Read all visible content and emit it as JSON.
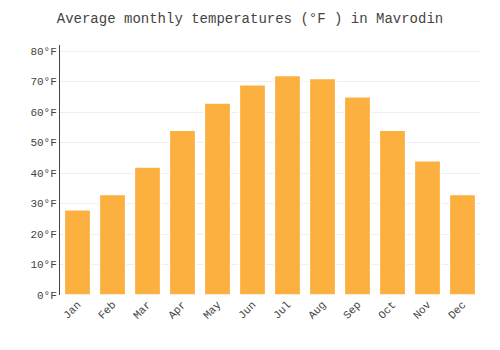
{
  "chart_data": {
    "type": "bar",
    "title": "Average monthly temperatures (°F ) in Mavrodin",
    "categories": [
      "Jan",
      "Feb",
      "Mar",
      "Apr",
      "May",
      "Jun",
      "Jul",
      "Aug",
      "Sep",
      "Oct",
      "Nov",
      "Dec"
    ],
    "values": [
      28,
      33,
      42,
      54,
      63,
      69,
      72,
      71,
      65,
      54,
      44,
      33
    ],
    "color": "#FBB040",
    "ylim": [
      0,
      82
    ],
    "yticks": [
      {
        "value": 0,
        "label": "0°F"
      },
      {
        "value": 10,
        "label": "10°F"
      },
      {
        "value": 20,
        "label": "20°F"
      },
      {
        "value": 30,
        "label": "30°F"
      },
      {
        "value": 40,
        "label": "40°F"
      },
      {
        "value": 50,
        "label": "50°F"
      },
      {
        "value": 60,
        "label": "60°F"
      },
      {
        "value": 70,
        "label": "70°F"
      },
      {
        "value": 80,
        "label": "80°F"
      }
    ],
    "grid": true
  }
}
